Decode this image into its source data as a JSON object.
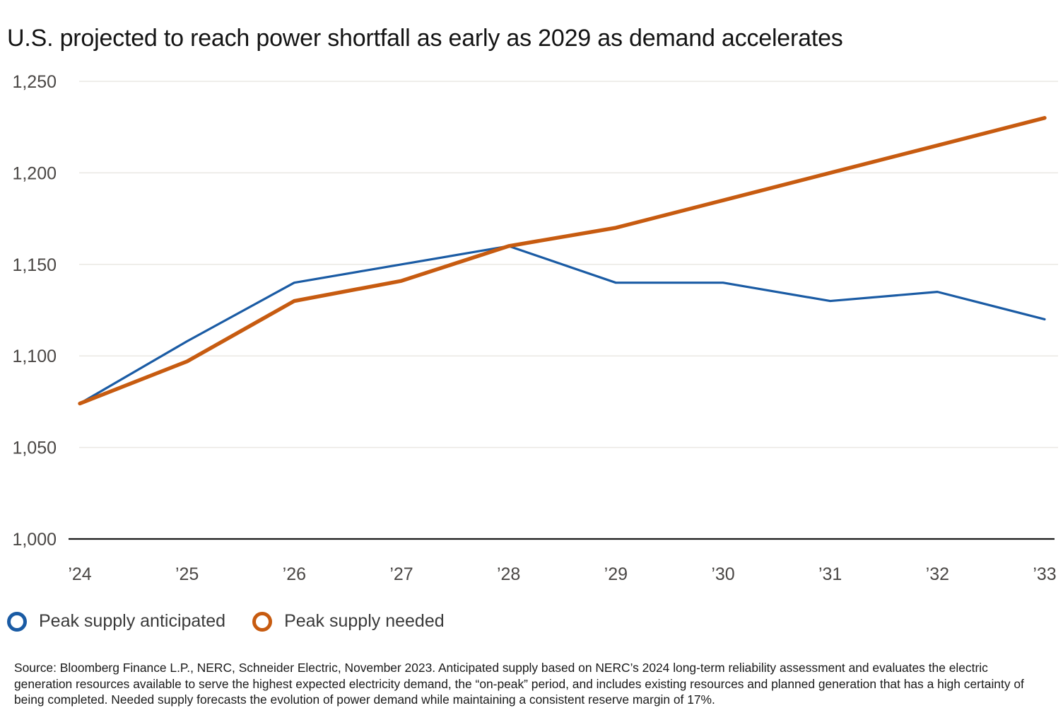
{
  "title": "U.S. projected to reach power shortfall as early as 2029 as demand accelerates",
  "chart_data": {
    "type": "line",
    "title": "U.S. projected to reach power shortfall as early as 2029 as demand accelerates",
    "xlabel": "",
    "ylabel": "",
    "ylim": [
      1000,
      1250
    ],
    "grid": "horizontal",
    "legend_position": "bottom-left",
    "x_labels": [
      "’24",
      "’25",
      "’26",
      "’27",
      "’28",
      "’29",
      "’30",
      "’31",
      "’32",
      "’33"
    ],
    "y_ticks": [
      {
        "value": 1250,
        "label": "1,250"
      },
      {
        "value": 1200,
        "label": "1,200"
      },
      {
        "value": 1150,
        "label": "1,150"
      },
      {
        "value": 1100,
        "label": "1,100"
      },
      {
        "value": 1050,
        "label": "1,050"
      },
      {
        "value": 1000,
        "label": "1,000"
      }
    ],
    "series": [
      {
        "name": "Peak supply anticipated",
        "color": "#1a5ba4",
        "values": [
          1074,
          1108,
          1140,
          1150,
          1160,
          1140,
          1140,
          1130,
          1135,
          1120
        ]
      },
      {
        "name": "Peak supply needed",
        "color": "#c75b10",
        "values": [
          1074,
          1097,
          1130,
          1141,
          1160,
          1170,
          1185,
          1200,
          1215,
          1230
        ]
      }
    ]
  },
  "legend": {
    "items": [
      {
        "label": "Peak supply anticipated",
        "color": "#1a5ba4"
      },
      {
        "label": "Peak supply needed",
        "color": "#c75b10"
      }
    ]
  },
  "source_text": "Source: Bloomberg Finance L.P., NERC, Schneider Electric, November 2023. Anticipated supply based on NERC’s 2024 long-term reliability assessment and evaluates the electric generation resources available to serve the highest expected electricity demand, the “on-peak” period, and includes existing resources and planned generation that has a high certainty of being completed. Needed supply forecasts the evolution of power demand while maintaining a consistent reserve margin of 17%."
}
